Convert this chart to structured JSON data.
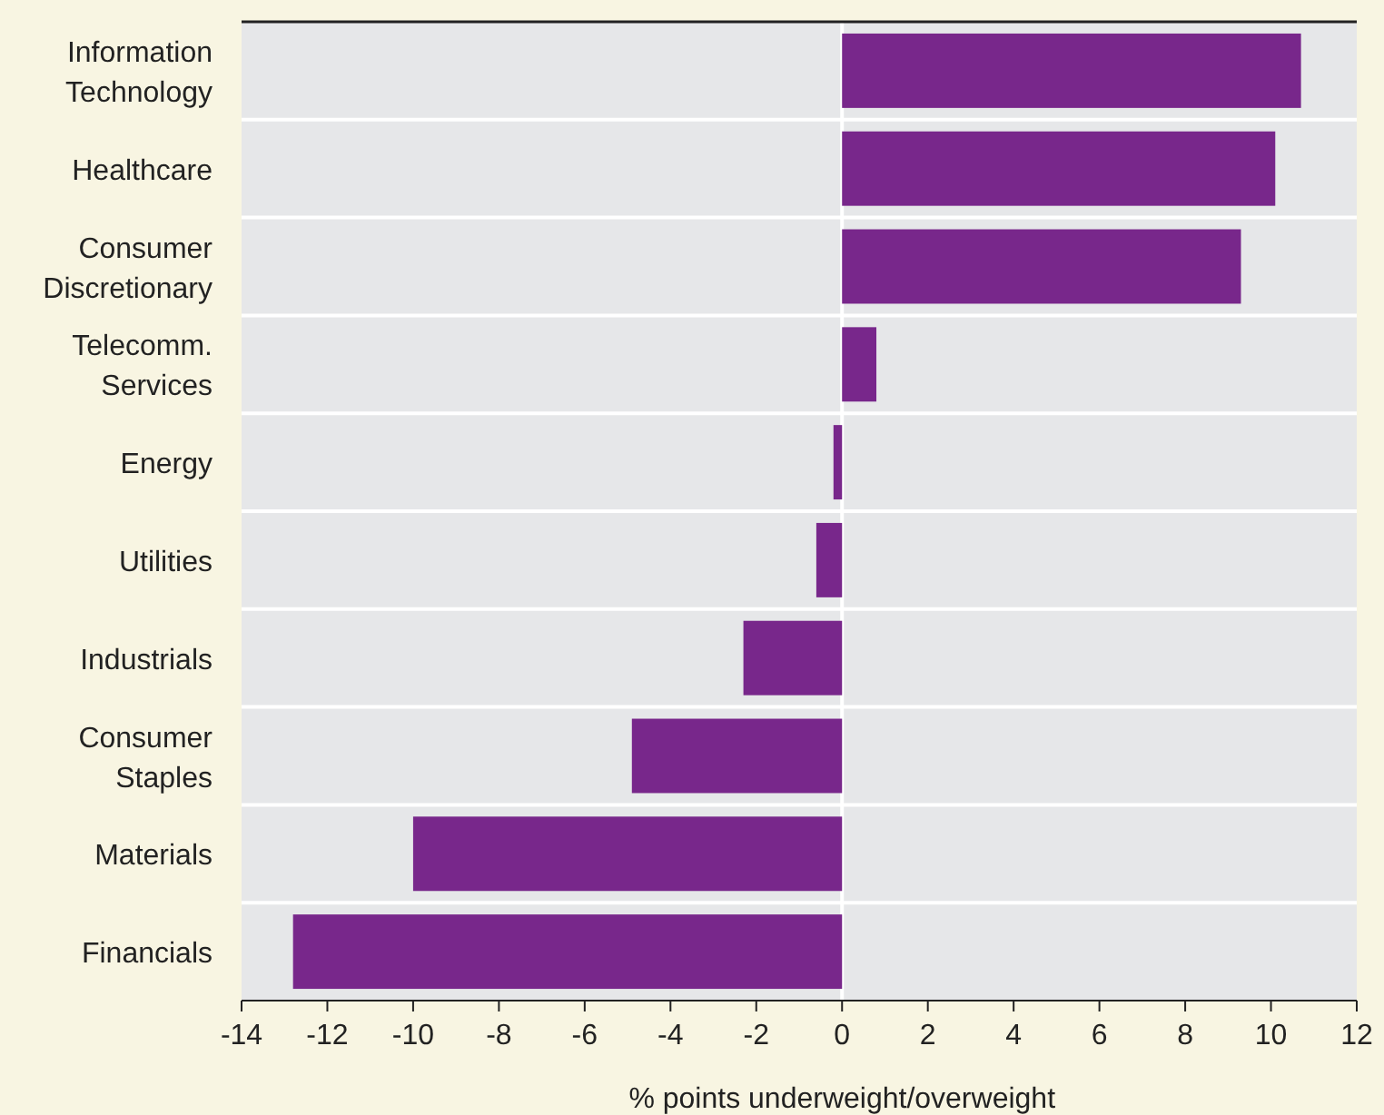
{
  "chart_data": {
    "type": "bar",
    "orientation": "horizontal",
    "xlabel": "% points underweight/overweight",
    "categories": [
      "Information\nTechnology",
      "Healthcare",
      "Consumer\nDiscretionary",
      "Telecomm.\nServices",
      "Energy",
      "Utilities",
      "Industrials",
      "Consumer\nStaples",
      "Materials",
      "Financials"
    ],
    "values": [
      10.7,
      10.1,
      9.3,
      0.8,
      -0.2,
      -0.6,
      -2.3,
      -4.9,
      -10.0,
      -12.8
    ],
    "color": "#78278b",
    "xlim": [
      -14,
      12
    ],
    "xticks": [
      -14,
      -12,
      -10,
      -8,
      -6,
      -4,
      -2,
      0,
      2,
      4,
      6,
      8,
      10,
      12
    ],
    "grid": "y",
    "ref_lines": [
      {
        "axis": "x",
        "value": 0,
        "color": "#ffffff"
      }
    ]
  }
}
